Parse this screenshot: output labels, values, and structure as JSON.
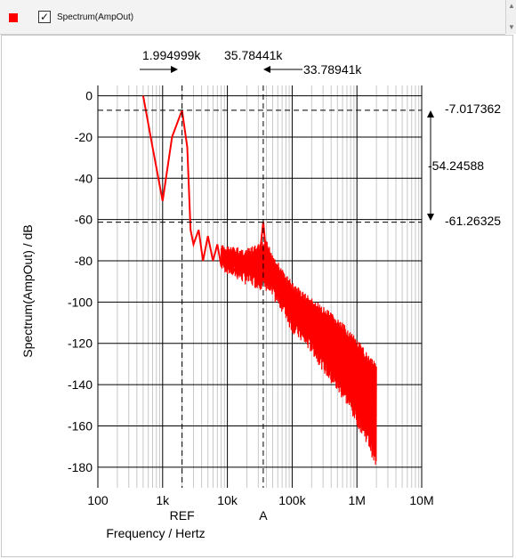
{
  "legend": {
    "series_label": "Spectrum(AmpOut)",
    "swatch_color": "#ff0000",
    "checked": true,
    "check_glyph": "✓"
  },
  "colors": {
    "series": "#ff0000",
    "grid_major": "#000000",
    "grid_minor": "#c8c8c8"
  },
  "chart_data": {
    "type": "line",
    "x_scale": "log",
    "xlim": [
      100,
      10000000
    ],
    "ylim": [
      -190,
      5
    ],
    "xlabel": "Frequency / Hertz",
    "ylabel": "Spectrum(AmpOut) / dB",
    "x_ticks": [
      100,
      1000,
      10000,
      100000,
      1000000,
      10000000
    ],
    "x_tick_labels": [
      "100",
      "1k",
      "10k",
      "100k",
      "1M",
      "10M"
    ],
    "y_ticks": [
      0,
      -20,
      -40,
      -60,
      -80,
      -100,
      -120,
      -140,
      -160,
      -180
    ],
    "y_tick_labels": [
      "0",
      "-20",
      "-40",
      "-60",
      "-80",
      "-100",
      "-120",
      "-140",
      "-160",
      "-180"
    ],
    "grid": true,
    "series": [
      {
        "name": "Spectrum(AmpOut)",
        "color": "#ff0000",
        "x": [
          500,
          700,
          1000,
          1400,
          1995,
          2400,
          2700,
          3000,
          3600,
          4200,
          5000,
          6000,
          7000,
          8000,
          10000,
          12000,
          15000,
          20000,
          25000,
          30000,
          35784,
          40000,
          50000,
          70000,
          100000,
          150000,
          200000,
          300000,
          500000,
          700000,
          1000000,
          1500000,
          2000000
        ],
        "y": [
          0,
          -25,
          -51,
          -20,
          -7,
          -25,
          -65,
          -72,
          -65,
          -80,
          -68,
          -80,
          -72,
          -82,
          -76,
          -86,
          -80,
          -80,
          -78,
          -84,
          -61,
          -78,
          -88,
          -96,
          -98,
          -105,
          -112,
          -120,
          -128,
          -135,
          -140,
          -150,
          -155
        ],
        "noise_envelope": {
          "x": [
            8000,
            20000,
            40000,
            70000,
            100000,
            200000,
            400000,
            700000,
            1000000,
            1500000,
            2000000
          ],
          "upper": [
            -72,
            -74,
            -70,
            -84,
            -90,
            -98,
            -105,
            -112,
            -118,
            -125,
            -128
          ],
          "lower": [
            -85,
            -92,
            -95,
            -105,
            -115,
            -125,
            -140,
            -150,
            -160,
            -170,
            -182
          ]
        }
      }
    ],
    "cursors": {
      "ref": {
        "label": "REF",
        "x": 1995,
        "x_label": "1.994999k",
        "y": -7.017362,
        "y_label": "-7.017362"
      },
      "a": {
        "label": "A",
        "x": 35784,
        "x_label": "35.78441k",
        "y": -61.26325,
        "y_label": "-61.26325"
      },
      "dx_label": "33.78941k",
      "dy_label": "-54.24588"
    }
  }
}
